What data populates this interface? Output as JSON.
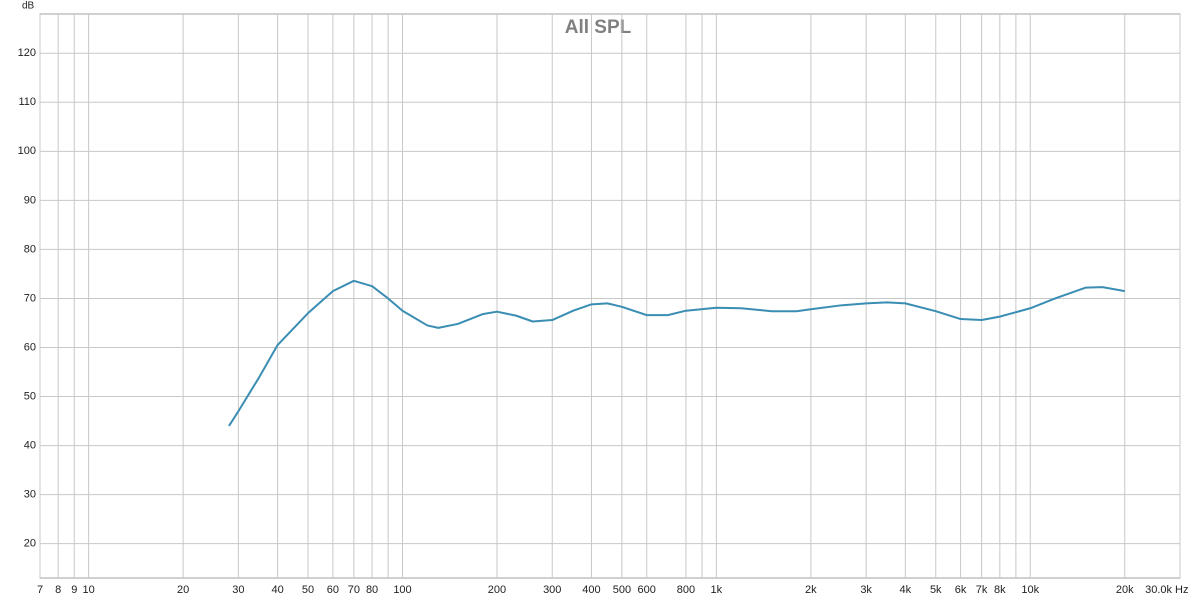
{
  "chart_data": {
    "type": "line",
    "title": "All SPL",
    "y_label": "dB",
    "x_label": "Hz",
    "log_x": true,
    "grid": true,
    "xlim": [
      7,
      30000
    ],
    "ylim": [
      13,
      128
    ],
    "xticks": [
      7,
      8,
      9,
      10,
      20,
      30,
      40,
      50,
      60,
      70,
      80,
      100,
      200,
      300,
      400,
      500,
      600,
      800,
      {
        "value": 1000,
        "label": "1k"
      },
      {
        "value": 2000,
        "label": "2k"
      },
      {
        "value": 3000,
        "label": "3k"
      },
      {
        "value": 4000,
        "label": "4k"
      },
      {
        "value": 5000,
        "label": "5k"
      },
      {
        "value": 6000,
        "label": "6k"
      },
      {
        "value": 7000,
        "label": "7k"
      },
      {
        "value": 8000,
        "label": "8k"
      },
      {
        "value": 10000,
        "label": "10k"
      },
      {
        "value": 20000,
        "label": "20k"
      },
      {
        "value": 30000,
        "label": "30.0k"
      }
    ],
    "xminor": [
      90,
      900,
      9000
    ],
    "yticks": [
      20,
      30,
      40,
      50,
      60,
      70,
      80,
      90,
      100,
      110,
      120
    ],
    "x": [
      28,
      30,
      35,
      40,
      50,
      60,
      70,
      80,
      90,
      100,
      120,
      130,
      150,
      180,
      200,
      230,
      260,
      300,
      350,
      400,
      450,
      500,
      600,
      700,
      800,
      1000,
      1200,
      1500,
      1800,
      2000,
      2500,
      3000,
      3500,
      4000,
      5000,
      6000,
      7000,
      8000,
      10000,
      12000,
      15000,
      17000,
      20000
    ],
    "series": [
      {
        "color": "#3a8db3",
        "values": [
          44,
          47,
          54,
          60.5,
          67,
          71.5,
          73.6,
          72.5,
          70,
          67.5,
          64.5,
          64,
          64.8,
          66.8,
          67.3,
          66.5,
          65.3,
          65.6,
          67.5,
          68.8,
          69,
          68.3,
          66.6,
          66.6,
          67.5,
          68.1,
          68,
          67.4,
          67.4,
          67.8,
          68.6,
          69,
          69.2,
          69,
          67.4,
          65.8,
          65.6,
          66.3,
          68,
          70,
          72.2,
          72.3,
          71.5
        ]
      }
    ]
  }
}
